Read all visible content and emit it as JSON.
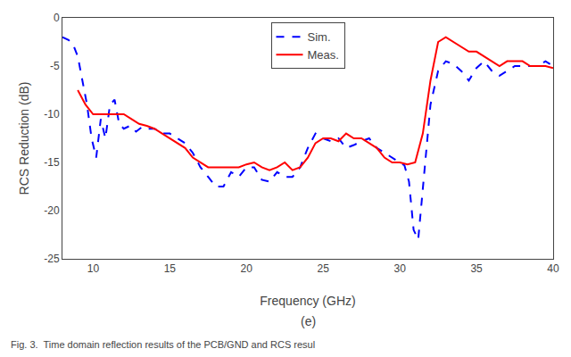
{
  "chart_data": {
    "type": "line",
    "xlabel": "Frequency (GHz)",
    "ylabel": "RCS Reduction (dB)",
    "subtitle": "(e)",
    "caption": "Fig. 3.  Time domain reflection results of the PCB/GND and RCS resul",
    "xlim": [
      8,
      40
    ],
    "ylim": [
      -25,
      0
    ],
    "xticks": [
      10,
      15,
      20,
      25,
      30,
      35,
      40
    ],
    "yticks": [
      0,
      -5,
      -10,
      -15,
      -20,
      -25
    ],
    "grid": false,
    "legend": "upper center",
    "series": [
      {
        "name": "Sim.",
        "color": "#0000FF",
        "line_style": "dashed",
        "x": [
          8.0,
          8.4,
          8.7,
          9.0,
          9.3,
          9.6,
          9.9,
          10.2,
          10.5,
          10.8,
          11.1,
          11.4,
          11.7,
          12.0,
          12.4,
          12.8,
          13.2,
          13.6,
          14.0,
          14.5,
          15.0,
          15.5,
          16.0,
          16.5,
          17.0,
          17.5,
          18.0,
          18.5,
          19.0,
          19.5,
          20.0,
          20.5,
          21.0,
          21.5,
          22.0,
          22.5,
          23.0,
          23.5,
          24.0,
          24.5,
          25.0,
          25.5,
          26.0,
          26.5,
          27.0,
          27.5,
          28.0,
          28.5,
          29.0,
          29.5,
          30.0,
          30.3,
          30.6,
          30.9,
          31.2,
          31.5,
          32.0,
          32.5,
          33.0,
          33.5,
          34.0,
          34.5,
          35.0,
          35.5,
          36.0,
          36.5,
          37.0,
          37.5,
          38.0,
          38.5,
          39.0,
          39.5,
          40.0
        ],
        "values": [
          -2.0,
          -2.3,
          -2.8,
          -4.0,
          -6.5,
          -9.0,
          -12.5,
          -14.5,
          -10.5,
          -12.5,
          -9.0,
          -8.5,
          -11.0,
          -11.5,
          -11.2,
          -11.8,
          -11.3,
          -11.5,
          -11.5,
          -12.0,
          -12.0,
          -12.5,
          -13.0,
          -14.0,
          -15.5,
          -16.5,
          -17.5,
          -17.5,
          -16.0,
          -16.5,
          -15.5,
          -15.5,
          -16.8,
          -17.0,
          -16.0,
          -16.5,
          -16.5,
          -15.5,
          -13.5,
          -12.0,
          -12.5,
          -12.8,
          -12.5,
          -13.5,
          -13.2,
          -12.8,
          -12.5,
          -13.5,
          -14.0,
          -14.5,
          -15.0,
          -15.3,
          -17.0,
          -22.0,
          -23.0,
          -18.0,
          -9.0,
          -5.5,
          -4.5,
          -4.8,
          -5.5,
          -6.5,
          -5.2,
          -4.5,
          -5.5,
          -6.0,
          -5.5,
          -5.0,
          -5.0,
          -5.0,
          -5.0,
          -4.5,
          -5.0
        ]
      },
      {
        "name": "Meas.",
        "color": "#FF0000",
        "line_style": "solid",
        "x": [
          9.0,
          9.5,
          10.0,
          10.5,
          11.0,
          11.5,
          12.0,
          12.5,
          13.0,
          13.5,
          14.0,
          14.5,
          15.0,
          15.5,
          16.0,
          16.5,
          17.0,
          17.5,
          18.0,
          18.5,
          19.0,
          19.5,
          20.0,
          20.5,
          21.0,
          21.5,
          22.0,
          22.5,
          23.0,
          23.5,
          24.0,
          24.5,
          25.0,
          25.5,
          26.0,
          26.5,
          27.0,
          27.5,
          28.0,
          28.5,
          29.0,
          29.5,
          30.0,
          30.5,
          31.0,
          31.5,
          32.0,
          32.5,
          33.0,
          33.5,
          34.0,
          34.5,
          35.0,
          35.5,
          36.0,
          36.5,
          37.0,
          37.5,
          38.0,
          38.5,
          39.0,
          39.5,
          40.0
        ],
        "values": [
          -7.5,
          -9.0,
          -10.0,
          -10.0,
          -10.0,
          -10.0,
          -10.0,
          -10.5,
          -11.0,
          -11.2,
          -11.5,
          -12.0,
          -12.5,
          -13.0,
          -13.5,
          -14.5,
          -15.0,
          -15.5,
          -15.5,
          -15.5,
          -15.5,
          -15.5,
          -15.2,
          -15.0,
          -15.5,
          -15.8,
          -15.5,
          -15.0,
          -15.8,
          -15.5,
          -14.5,
          -13.0,
          -12.5,
          -12.5,
          -12.8,
          -12.0,
          -12.5,
          -12.5,
          -13.0,
          -13.5,
          -14.5,
          -15.0,
          -15.0,
          -15.2,
          -15.0,
          -12.0,
          -6.5,
          -2.5,
          -2.0,
          -2.5,
          -3.0,
          -3.5,
          -3.5,
          -4.0,
          -4.5,
          -5.0,
          -4.5,
          -4.5,
          -4.5,
          -5.0,
          -5.0,
          -5.0,
          -5.2
        ]
      }
    ]
  }
}
